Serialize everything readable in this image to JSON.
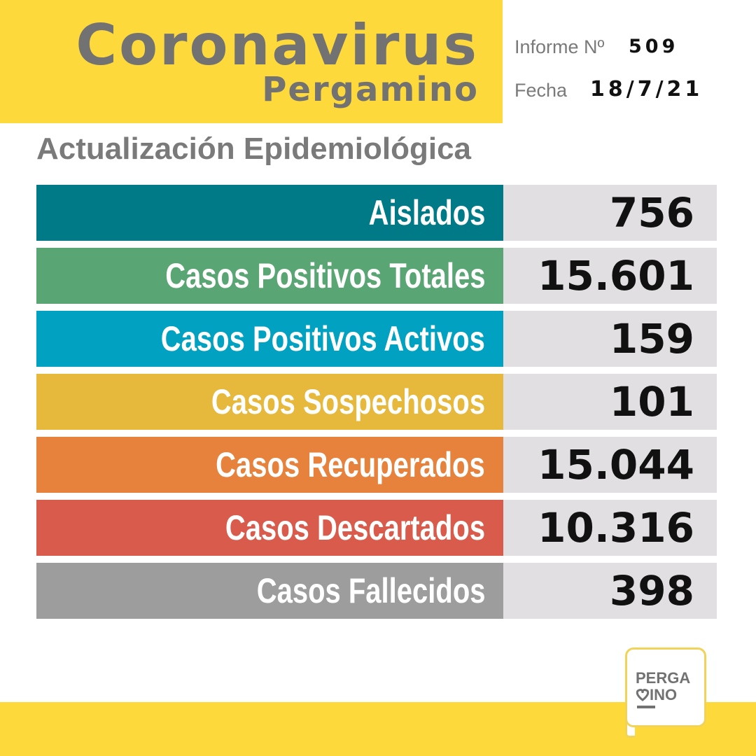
{
  "header": {
    "title": "Coronavirus",
    "subtitle": "Pergamino",
    "report_label": "Informe Nº",
    "report_number": "509",
    "date_label": "Fecha",
    "date": "18/7/21"
  },
  "section_title": "Actualización Epidemiológica",
  "stats": [
    {
      "label": "Aislados",
      "value": "756",
      "color": "#007a87"
    },
    {
      "label": "Casos Positivos Totales",
      "value": "15.601",
      "color": "#5aa574"
    },
    {
      "label": "Casos Positivos Activos",
      "value": "159",
      "color": "#00a1c1"
    },
    {
      "label": "Casos Sospechosos",
      "value": "101",
      "color": "#e6b83b"
    },
    {
      "label": "Casos Recuperados",
      "value": "15.044",
      "color": "#e6823b"
    },
    {
      "label": "Casos Descartados",
      "value": "10.316",
      "color": "#d95b4b"
    },
    {
      "label": "Casos Fallecidos",
      "value": "398",
      "color": "#9d9d9d"
    }
  ],
  "logo": {
    "line1": "PERGA",
    "line2": "INO"
  }
}
